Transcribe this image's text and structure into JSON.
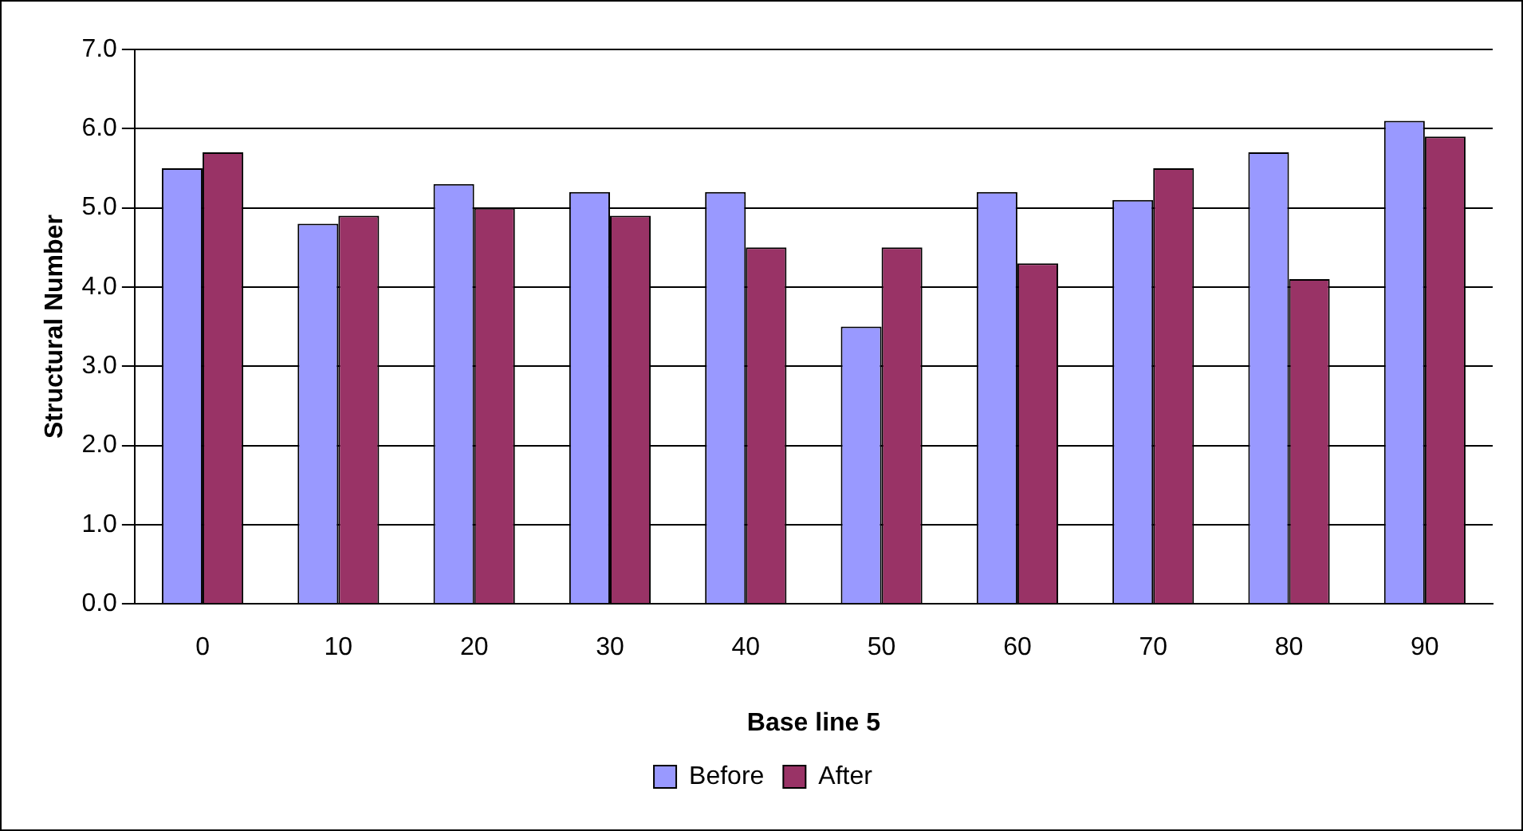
{
  "chart_data": {
    "type": "bar",
    "xlabel": "Base line 5",
    "ylabel": "Structural Number",
    "categories": [
      "0",
      "10",
      "20",
      "30",
      "40",
      "50",
      "60",
      "70",
      "80",
      "90"
    ],
    "series": [
      {
        "name": "Before",
        "color": "#9999ff",
        "values": [
          5.5,
          4.8,
          5.3,
          5.2,
          5.2,
          3.5,
          5.2,
          5.1,
          5.7,
          6.1
        ]
      },
      {
        "name": "After",
        "color": "#993366",
        "values": [
          5.7,
          4.9,
          5.0,
          4.9,
          4.5,
          4.5,
          4.3,
          5.5,
          4.1,
          5.9
        ]
      }
    ],
    "ylim": [
      0,
      7
    ],
    "yticks": [
      {
        "value": 0,
        "label": "0.0"
      },
      {
        "value": 1,
        "label": "1.0"
      },
      {
        "value": 2,
        "label": "2.0"
      },
      {
        "value": 3,
        "label": "3.0"
      },
      {
        "value": 4,
        "label": "4.0"
      },
      {
        "value": 5,
        "label": "5.0"
      },
      {
        "value": 6,
        "label": "6.0"
      },
      {
        "value": 7,
        "label": "7.0"
      }
    ],
    "grid": "y",
    "legend": "bottom"
  }
}
